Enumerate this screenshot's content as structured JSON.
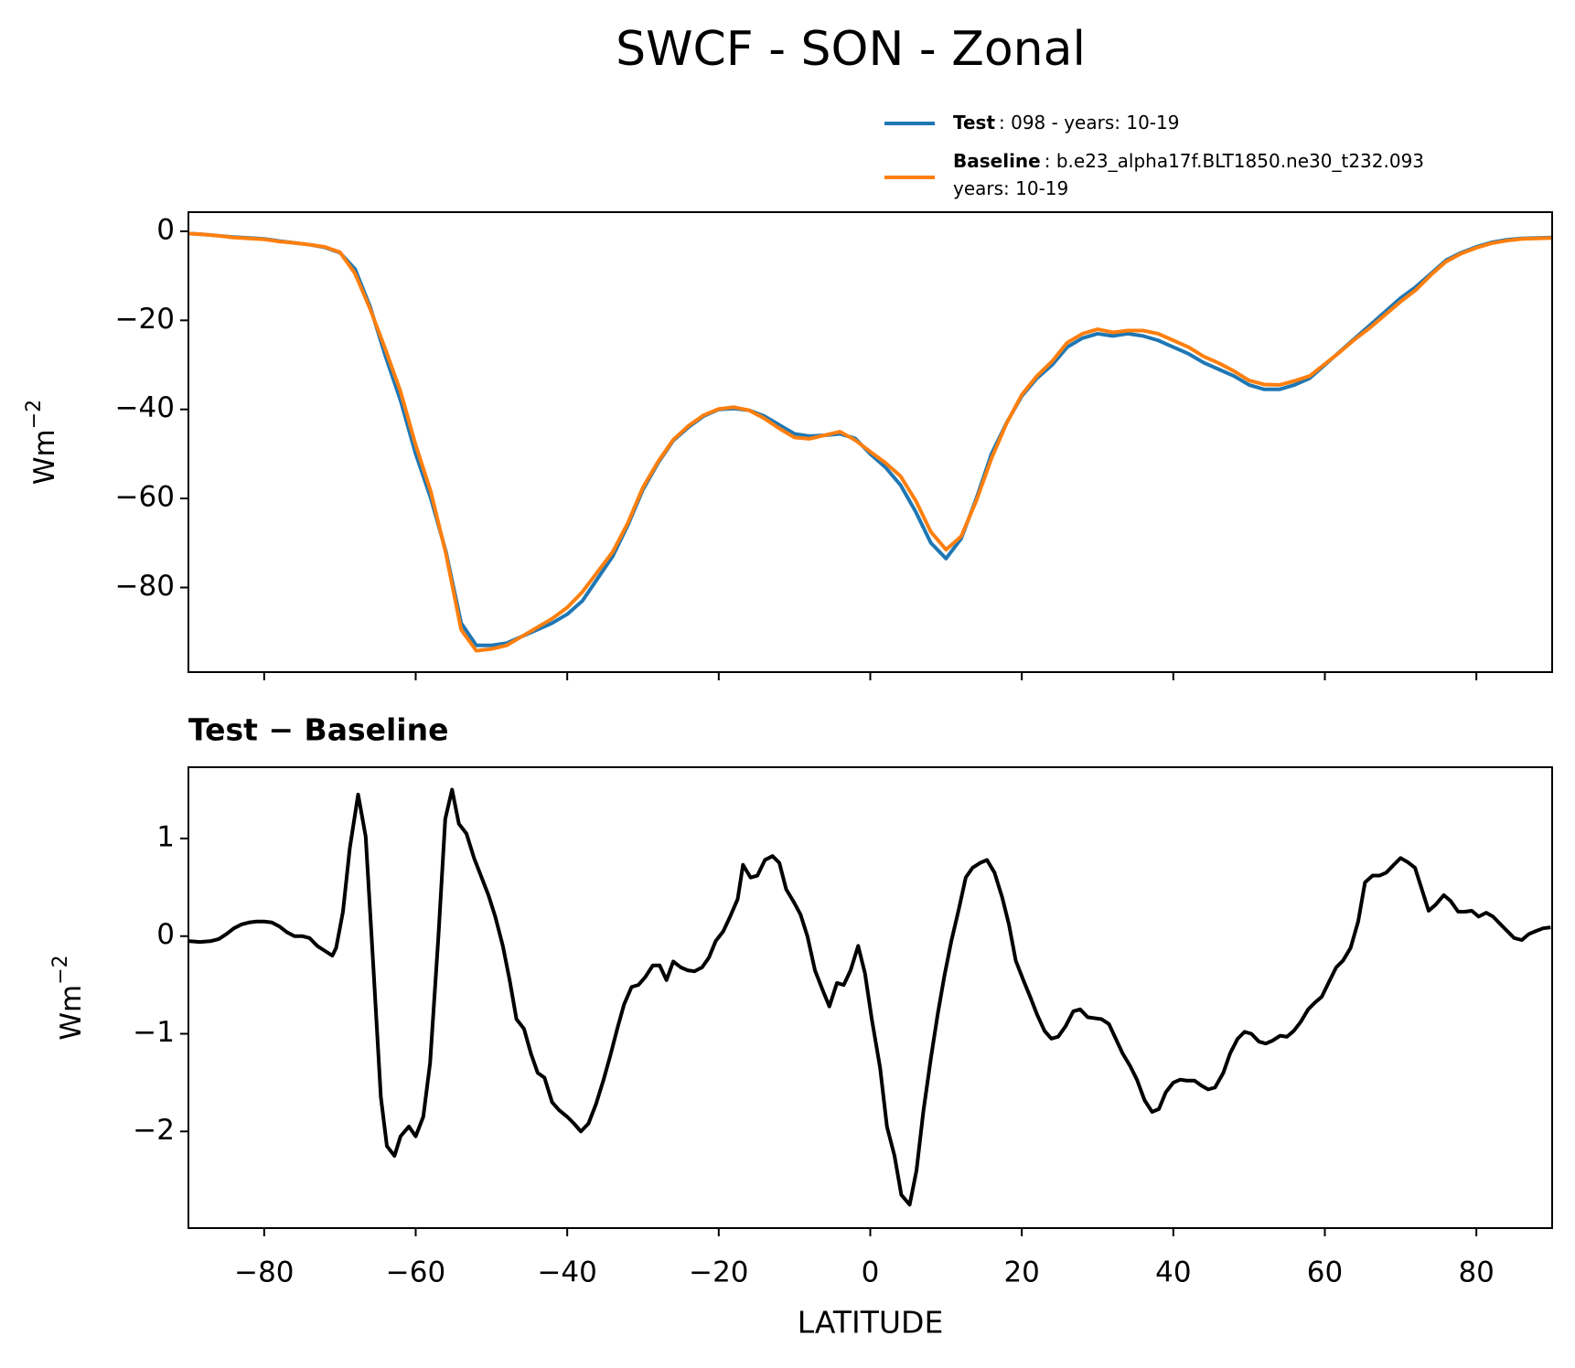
{
  "title": "SWCF - SON - Zonal",
  "chart_data": [
    {
      "type": "line",
      "y_label": "Wm",
      "y_label_sup": "−2",
      "legend": "upper right",
      "x": [
        -90,
        -88,
        -86,
        -84,
        -82,
        -80,
        -78,
        -76,
        -74,
        -72,
        -70,
        -68,
        -66,
        -64,
        -62,
        -60,
        -58,
        -56,
        -54,
        -52,
        -50,
        -48,
        -46,
        -44,
        -42,
        -40,
        -38,
        -36,
        -34,
        -32,
        -30,
        -28,
        -26,
        -24,
        -22,
        -20,
        -18,
        -16,
        -14,
        -12,
        -10,
        -8,
        -6,
        -4,
        -2,
        0,
        2,
        4,
        6,
        8,
        10,
        12,
        14,
        16,
        18,
        20,
        22,
        24,
        26,
        28,
        30,
        32,
        34,
        36,
        38,
        40,
        42,
        44,
        46,
        48,
        50,
        52,
        54,
        56,
        58,
        60,
        62,
        64,
        66,
        68,
        70,
        72,
        74,
        76,
        78,
        80,
        82,
        84,
        86,
        88,
        90
      ],
      "series": [
        {
          "name": "Test",
          "label": [
            ": 098 - years: 10-19"
          ],
          "color": "#1f77b4",
          "values": [
            -0.5,
            -0.7,
            -1.0,
            -1.3,
            -1.5,
            -1.7,
            -2.2,
            -2.6,
            -3.0,
            -3.6,
            -4.8,
            -8.5,
            -17,
            -28,
            -38,
            -50,
            -60,
            -72,
            -88,
            -93,
            -93,
            -92.5,
            -91,
            -89.5,
            -88,
            -86,
            -83,
            -78,
            -73,
            -66,
            -58,
            -52,
            -47,
            -44,
            -41.5,
            -40,
            -39.8,
            -40.2,
            -41.5,
            -43.5,
            -45.5,
            -46,
            -45.8,
            -45.5,
            -46.5,
            -50,
            -53,
            -57,
            -63,
            -70,
            -73.5,
            -69,
            -60,
            -50,
            -43,
            -37,
            -33,
            -30,
            -26,
            -24,
            -23,
            -23.5,
            -23,
            -23.5,
            -24.5,
            -26,
            -27.5,
            -29.5,
            -31,
            -32.5,
            -34.5,
            -35.5,
            -35.5,
            -34.5,
            -33,
            -30,
            -27,
            -24,
            -21,
            -18,
            -15,
            -12.5,
            -9.5,
            -6.5,
            -4.8,
            -3.5,
            -2.5,
            -1.9,
            -1.6,
            -1.5,
            -1.4
          ]
        },
        {
          "name": "Baseline",
          "label": [
            ": b.e23_alpha17f.BLT1850.ne30_t232.093",
            "years: 10-19"
          ],
          "color": "#ff7f0e",
          "values": [
            -0.5,
            -0.7,
            -1.0,
            -1.4,
            -1.6,
            -1.8,
            -2.3,
            -2.6,
            -3.0,
            -3.5,
            -4.7,
            -9.5,
            -17.5,
            -26.5,
            -36,
            -48,
            -58.5,
            -72.5,
            -89.5,
            -94.2,
            -93.8,
            -93,
            -91,
            -89,
            -87,
            -84.5,
            -81,
            -76.5,
            -72,
            -65.5,
            -57.5,
            -51.7,
            -46.8,
            -43.7,
            -41.3,
            -39.9,
            -39.5,
            -40.2,
            -42,
            -44.3,
            -46.3,
            -46.6,
            -45.8,
            -45,
            -46.9,
            -49.5,
            -52,
            -55,
            -60.5,
            -67.5,
            -71.5,
            -68.5,
            -60.5,
            -51,
            -43.1,
            -36.7,
            -32.5,
            -29.2,
            -25,
            -23,
            -22,
            -22.7,
            -22.3,
            -22.3,
            -23,
            -24.5,
            -26,
            -28.1,
            -29.6,
            -31.4,
            -33.5,
            -34.4,
            -34.5,
            -33.6,
            -32.5,
            -29.8,
            -27.1,
            -24.2,
            -21.6,
            -18.7,
            -15.8,
            -13.2,
            -9.8,
            -6.8,
            -5.0,
            -3.7,
            -2.7,
            -2.1,
            -1.7,
            -1.6,
            -1.5
          ]
        }
      ],
      "xlim": [
        -90,
        90
      ],
      "xticks": [
        -80,
        -60,
        -40,
        -20,
        0,
        20,
        40,
        60,
        80
      ],
      "ylim": [
        -99,
        4.3
      ],
      "yticks": [
        0,
        {
          "value": -20,
          "label": "−20"
        },
        {
          "value": -40,
          "label": "−40"
        },
        {
          "value": -60,
          "label": "−60"
        },
        {
          "value": -80,
          "label": "−80"
        }
      ]
    },
    {
      "type": "line",
      "title": "Test − Baseline",
      "x_label": "LATITUDE",
      "y_label": "Wm",
      "y_label_sup": "−2",
      "color": "#000000",
      "x": [
        -90,
        -88.5,
        -87,
        -86,
        -85,
        -84,
        -83,
        -82,
        -81,
        -80,
        -79,
        -78,
        -77,
        -76,
        -75,
        -74,
        -73,
        -72,
        -71,
        -70.5,
        -69.6,
        -68.7,
        -67.6,
        -66.6,
        -65.6,
        -64.6,
        -63.8,
        -62.8,
        -62,
        -60.9,
        -60,
        -59,
        -58.1,
        -57,
        -56.1,
        -55.2,
        -54.3,
        -53.3,
        -52.3,
        -51.3,
        -50.4,
        -49.5,
        -48.5,
        -47.6,
        -46.7,
        -45.7,
        -44.8,
        -43.9,
        -43,
        -42,
        -41.1,
        -40,
        -39.1,
        -38.2,
        -37.2,
        -36.2,
        -35.2,
        -34.3,
        -33.4,
        -32.5,
        -31.5,
        -30.6,
        -29.7,
        -28.7,
        -27.8,
        -26.9,
        -26,
        -25,
        -24.1,
        -23.2,
        -22.2,
        -21.3,
        -20.4,
        -19.4,
        -18.5,
        -17.5,
        -16.8,
        -15.8,
        -14.9,
        -13.9,
        -12.9,
        -12,
        -11.1,
        -10.1,
        -9.2,
        -8.3,
        -7.3,
        -6.3,
        -5.4,
        -4.4,
        -3.5,
        -2.6,
        -1.6,
        -0.7,
        0.2,
        1.3,
        2.2,
        3.2,
        4.1,
        5.2,
        6.1,
        7,
        8,
        8.9,
        9.8,
        10.7,
        11.7,
        12.6,
        13.5,
        14.5,
        15.4,
        16.4,
        17.4,
        18.3,
        19.2,
        20.2,
        21.1,
        22,
        23,
        23.9,
        24.8,
        25.8,
        26.8,
        27.7,
        28.7,
        29.6,
        30.5,
        31.5,
        32.4,
        33.3,
        34.3,
        35.2,
        36.2,
        37.2,
        38.1,
        39,
        40,
        40.9,
        41.8,
        42.8,
        43.7,
        44.6,
        45.5,
        46.6,
        47.5,
        48.5,
        49.4,
        50.3,
        51.3,
        52.2,
        53.1,
        54.1,
        55,
        55.9,
        56.8,
        57.8,
        58.7,
        59.6,
        60.6,
        61.5,
        62.4,
        63.4,
        64.4,
        65.3,
        66.3,
        67.2,
        68.1,
        69.1,
        70,
        70.9,
        71.9,
        72.8,
        73.7,
        74.6,
        75.7,
        76.6,
        77.6,
        78.5,
        79.4,
        80.3,
        81.3,
        82.2,
        83.2,
        84.1,
        85,
        86,
        86.9,
        87.8,
        88.8,
        89.8
      ],
      "values": [
        -0.05,
        -0.06,
        -0.05,
        -0.03,
        0.02,
        0.08,
        0.12,
        0.14,
        0.15,
        0.15,
        0.14,
        0.1,
        0.04,
        0.0,
        0.0,
        -0.02,
        -0.1,
        -0.15,
        -0.2,
        -0.12,
        0.25,
        0.9,
        1.45,
        1.02,
        -0.3,
        -1.65,
        -2.15,
        -2.25,
        -2.05,
        -1.95,
        -2.05,
        -1.85,
        -1.3,
        0.0,
        1.2,
        1.5,
        1.15,
        1.05,
        0.8,
        0.6,
        0.42,
        0.2,
        -0.1,
        -0.45,
        -0.85,
        -0.95,
        -1.2,
        -1.4,
        -1.45,
        -1.7,
        -1.78,
        -1.85,
        -1.92,
        -2.0,
        -1.92,
        -1.72,
        -1.47,
        -1.22,
        -0.95,
        -0.7,
        -0.52,
        -0.5,
        -0.42,
        -0.3,
        -0.3,
        -0.45,
        -0.26,
        -0.32,
        -0.35,
        -0.36,
        -0.32,
        -0.22,
        -0.05,
        0.05,
        0.2,
        0.38,
        0.73,
        0.6,
        0.62,
        0.78,
        0.82,
        0.75,
        0.48,
        0.35,
        0.22,
        0.0,
        -0.35,
        -0.55,
        -0.72,
        -0.48,
        -0.5,
        -0.35,
        -0.1,
        -0.38,
        -0.85,
        -1.35,
        -1.95,
        -2.25,
        -2.65,
        -2.75,
        -2.4,
        -1.8,
        -1.25,
        -0.8,
        -0.4,
        -0.05,
        0.28,
        0.6,
        0.7,
        0.75,
        0.78,
        0.65,
        0.4,
        0.12,
        -0.25,
        -0.45,
        -0.62,
        -0.8,
        -0.97,
        -1.05,
        -1.03,
        -0.92,
        -0.77,
        -0.75,
        -0.83,
        -0.84,
        -0.85,
        -0.9,
        -1.05,
        -1.2,
        -1.33,
        -1.47,
        -1.68,
        -1.8,
        -1.77,
        -1.6,
        -1.5,
        -1.47,
        -1.48,
        -1.48,
        -1.53,
        -1.57,
        -1.55,
        -1.4,
        -1.2,
        -1.05,
        -0.98,
        -1.0,
        -1.08,
        -1.1,
        -1.07,
        -1.02,
        -1.03,
        -0.97,
        -0.88,
        -0.75,
        -0.68,
        -0.62,
        -0.46,
        -0.32,
        -0.25,
        -0.12,
        0.15,
        0.55,
        0.62,
        0.62,
        0.65,
        0.73,
        0.8,
        0.76,
        0.7,
        0.48,
        0.26,
        0.32,
        0.42,
        0.36,
        0.25,
        0.25,
        0.26,
        0.2,
        0.24,
        0.2,
        0.12,
        0.05,
        -0.02,
        -0.04,
        0.02,
        0.05,
        0.08,
        0.09
      ],
      "xlim": [
        -90,
        90
      ],
      "xticks": [
        {
          "value": -80,
          "label": "−80"
        },
        {
          "value": -60,
          "label": "−60"
        },
        {
          "value": -40,
          "label": "−40"
        },
        {
          "value": -20,
          "label": "−20"
        },
        0,
        20,
        40,
        60,
        80
      ],
      "ylim": [
        -2.99,
        1.73
      ],
      "yticks": [
        1,
        0,
        {
          "value": -1,
          "label": "−1"
        },
        {
          "value": -2,
          "label": "−2"
        }
      ]
    }
  ]
}
